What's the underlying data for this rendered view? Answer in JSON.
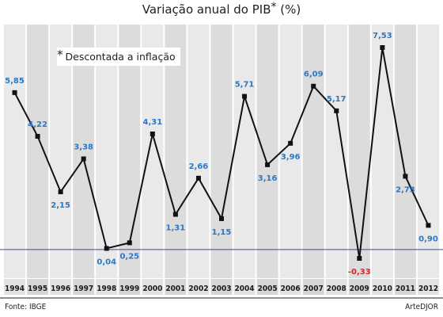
{
  "title": {
    "main": "Variação anual do PIB",
    "star": "*",
    "unit": "(%)"
  },
  "note": {
    "star": "*",
    "text": "Descontada a inflação"
  },
  "footer": {
    "source": "Fonte: IBGE",
    "credit": "ArteDJOR"
  },
  "colors": {
    "band_light": "#e9e9ea",
    "band_dark": "#dcdcdd",
    "line": "#111111",
    "label_positive": "#2b78c4",
    "label_negative": "#e2211c",
    "baseline": "#3d4d78"
  },
  "chart_data": {
    "type": "line",
    "title": "Variação anual do PIB* (%)",
    "categories": [
      "1994",
      "1995",
      "1996",
      "1997",
      "1998",
      "1999",
      "2000",
      "2001",
      "2002",
      "2003",
      "2004",
      "2005",
      "2006",
      "2007",
      "2008",
      "2009",
      "2010",
      "2011",
      "2012"
    ],
    "values": [
      5.85,
      4.22,
      2.15,
      3.38,
      0.04,
      0.25,
      4.31,
      1.31,
      2.66,
      1.15,
      5.71,
      3.16,
      3.96,
      6.09,
      5.17,
      -0.33,
      7.53,
      2.73,
      0.9
    ],
    "value_labels": [
      "5,85",
      "4,22",
      "2,15",
      "3,38",
      "0,04",
      "0,25",
      "4,31",
      "1,31",
      "2,66",
      "1,15",
      "5,71",
      "3,16",
      "3,96",
      "6,09",
      "5,17",
      "-0,33",
      "7,53",
      "2,73",
      "0,90"
    ],
    "label_position": [
      "above",
      "above",
      "below",
      "above",
      "below",
      "below",
      "above",
      "below",
      "above",
      "below",
      "above",
      "below",
      "below",
      "above",
      "above",
      "below",
      "above",
      "below",
      "below"
    ],
    "ylim": [
      -0.33,
      7.53
    ],
    "xlabel": "",
    "ylabel": "",
    "grid": false,
    "legend": "none"
  }
}
